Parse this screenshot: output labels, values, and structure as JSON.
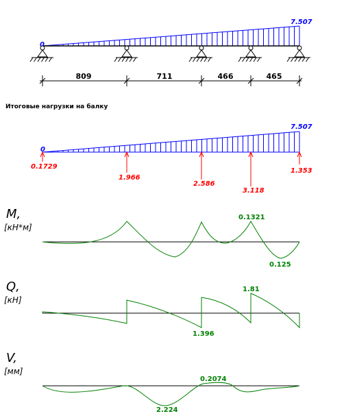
{
  "top_beam": {
    "load_start_label": "0",
    "load_end_label": "7.507",
    "spans": [
      "809",
      "711",
      "466",
      "465"
    ]
  },
  "loads_heading": "Итоговые нагрузки на балку",
  "loads_beam": {
    "load_start_label": "0",
    "load_end_label": "7.507",
    "reactions": [
      "0.1729",
      "1.966",
      "2.586",
      "3.118",
      "1.353"
    ]
  },
  "moment_diagram": {
    "symbol": "M,",
    "unit": "[кН*м]",
    "max_label": "0.1321",
    "min_label": "0.125"
  },
  "shear_diagram": {
    "symbol": "Q,",
    "unit": "[кН]",
    "max_label": "1.81",
    "min_label": "1.396"
  },
  "deflection_diagram": {
    "symbol": "V,",
    "unit": "[мм]",
    "max_label": "0.2074",
    "min_label": "2.224"
  },
  "colors": {
    "load": "#0000ff",
    "reaction": "#ff0000",
    "diagram": "#008000",
    "axis": "#000000"
  }
}
